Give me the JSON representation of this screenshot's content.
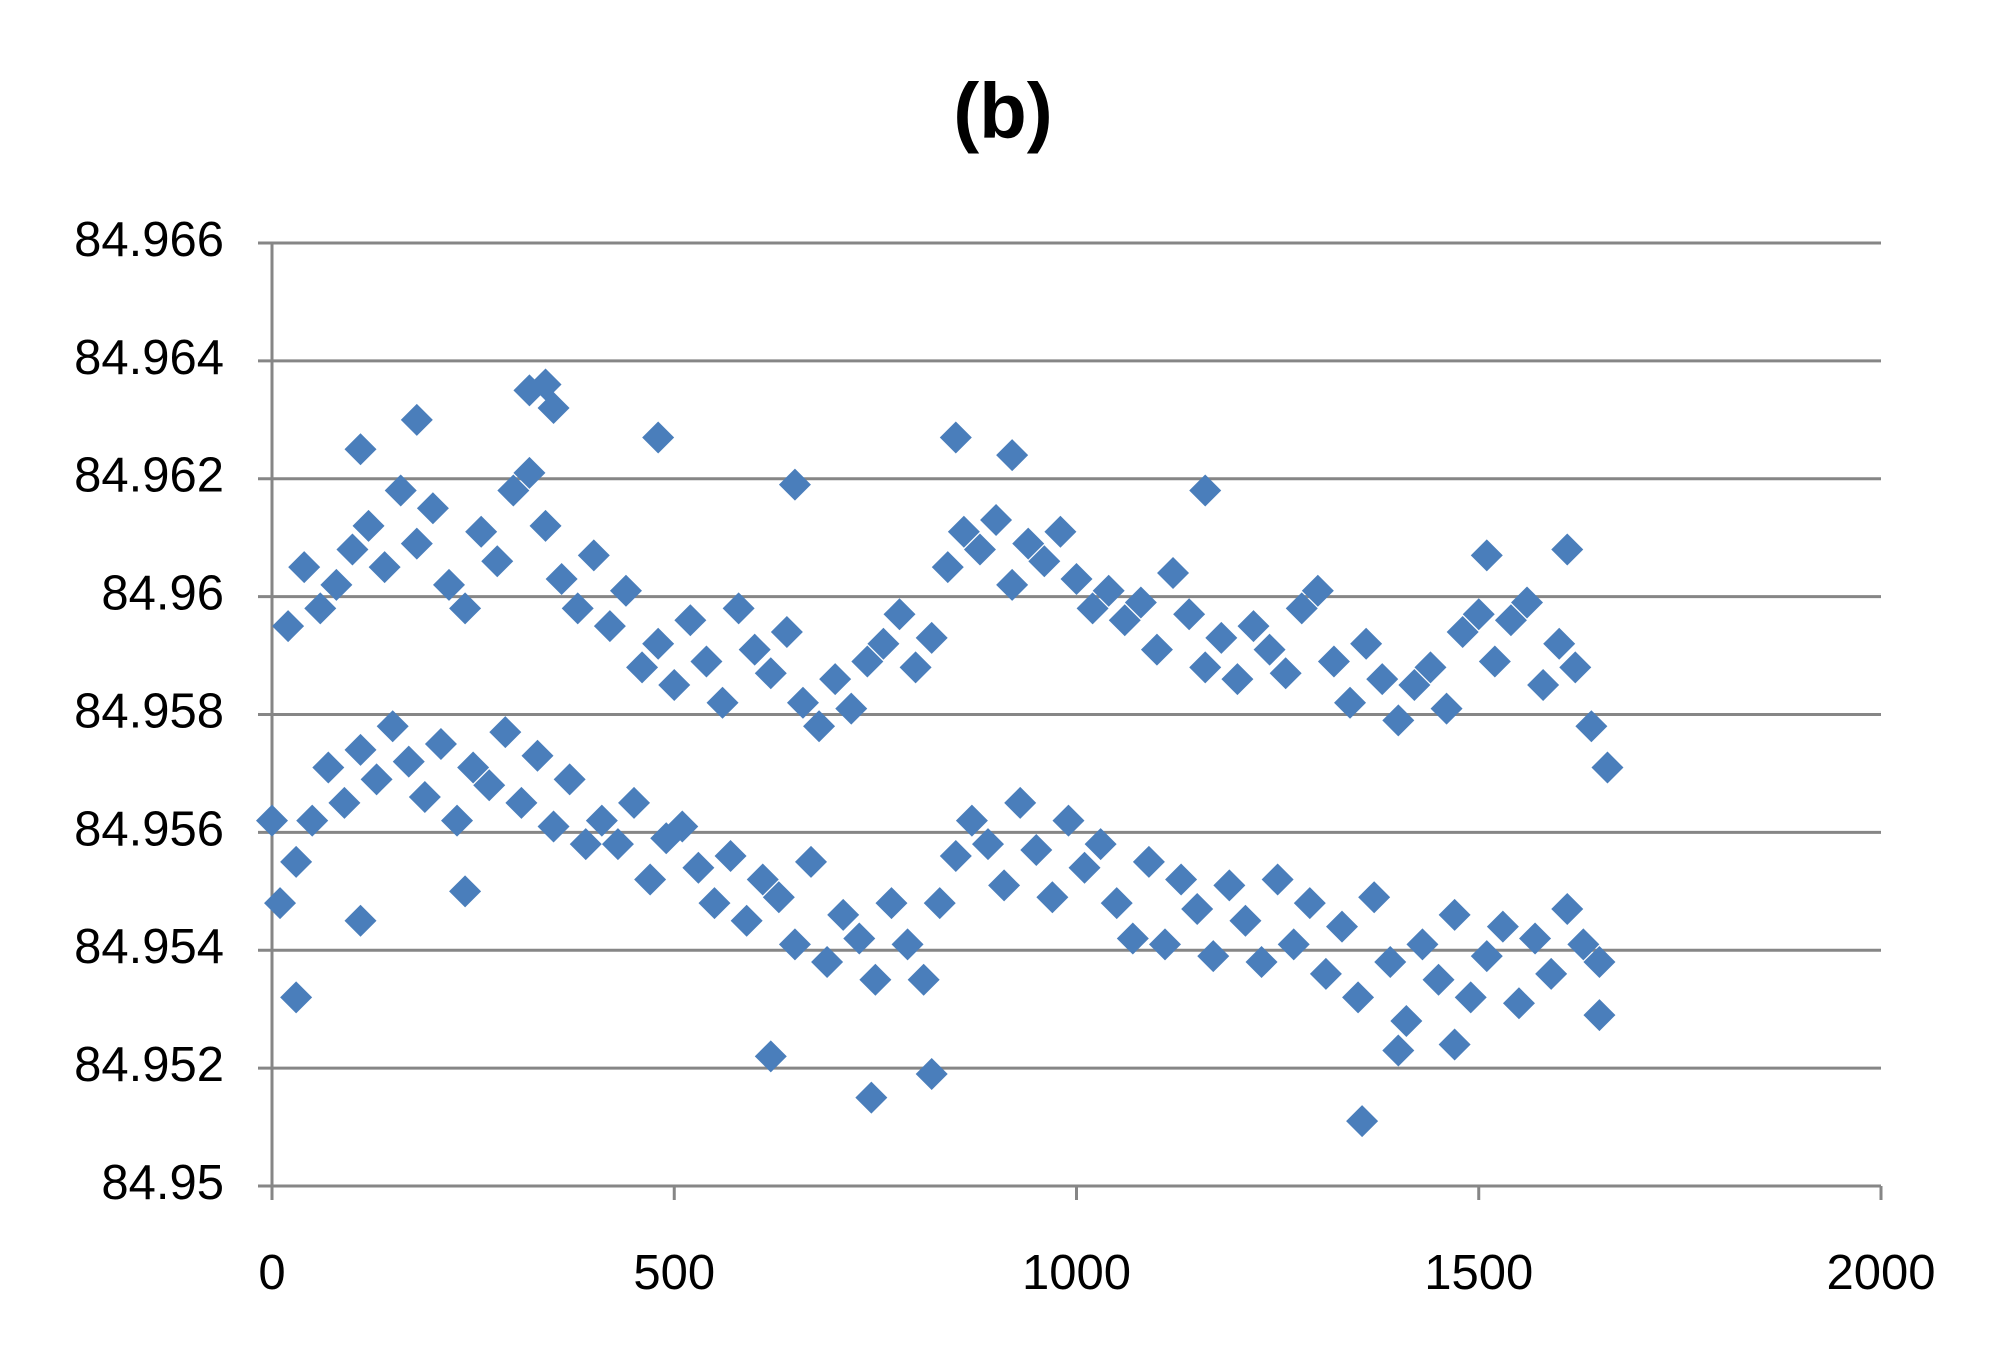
{
  "chart_data": {
    "type": "scatter",
    "title": "(b)",
    "color": "#4a7ebb",
    "marker": "diamond",
    "grid": true,
    "xlim": [
      0,
      2000
    ],
    "xticks": [
      0,
      500,
      1000,
      1500,
      2000
    ],
    "ylim": [
      84.95,
      84.966
    ],
    "yticks": [
      84.95,
      84.952,
      84.954,
      84.956,
      84.958,
      84.96,
      84.962,
      84.964,
      84.966
    ],
    "x": [
      110,
      180,
      320,
      340,
      350,
      480,
      650,
      850,
      920,
      1160,
      1510,
      1610,
      745,
      1355,
      30,
      110,
      240,
      620,
      820,
      1400,
      1470,
      1650,
      0,
      20,
      40,
      60,
      80,
      100,
      120,
      140,
      160,
      180,
      200,
      220,
      240,
      260,
      280,
      300,
      320,
      340,
      360,
      380,
      400,
      420,
      440,
      460,
      480,
      500,
      520,
      540,
      560,
      580,
      600,
      620,
      640,
      660,
      680,
      700,
      720,
      740,
      760,
      780,
      800,
      820,
      840,
      860,
      880,
      900,
      920,
      940,
      960,
      980,
      1000,
      1020,
      1040,
      1060,
      1080,
      1100,
      1120,
      1140,
      1160,
      1180,
      1200,
      1220,
      1240,
      1260,
      1280,
      1300,
      1320,
      1340,
      1360,
      1380,
      1400,
      1420,
      1440,
      1460,
      1480,
      1500,
      1520,
      1540,
      1560,
      1580,
      1600,
      1620,
      1640,
      1660,
      10,
      30,
      50,
      70,
      90,
      110,
      130,
      150,
      170,
      190,
      210,
      230,
      250,
      270,
      290,
      310,
      330,
      350,
      370,
      390,
      410,
      430,
      450,
      470,
      490,
      510,
      530,
      550,
      570,
      590,
      610,
      630,
      650,
      670,
      690,
      710,
      730,
      750,
      770,
      790,
      810,
      830,
      850,
      870,
      890,
      910,
      930,
      950,
      970,
      990,
      1010,
      1030,
      1050,
      1070,
      1090,
      1110,
      1130,
      1150,
      1170,
      1190,
      1210,
      1230,
      1250,
      1270,
      1290,
      1310,
      1330,
      1350,
      1370,
      1390,
      1410,
      1430,
      1450,
      1470,
      1490,
      1510,
      1530,
      1550,
      1570,
      1590,
      1610,
      1630,
      1650
    ],
    "values": [
      84.9625,
      84.963,
      84.9635,
      84.9636,
      84.9632,
      84.9627,
      84.9619,
      84.9627,
      84.9624,
      84.9618,
      84.9607,
      84.9608,
      84.9515,
      84.9511,
      84.9532,
      84.9545,
      84.955,
      84.9522,
      84.9519,
      84.9523,
      84.9524,
      84.9529,
      84.9562,
      84.9595,
      84.9605,
      84.9598,
      84.9602,
      84.9608,
      84.9612,
      84.9605,
      84.9618,
      84.9609,
      84.9615,
      84.9602,
      84.9598,
      84.9611,
      84.9606,
      84.9618,
      84.9621,
      84.9612,
      84.9603,
      84.9598,
      84.9607,
      84.9595,
      84.9601,
      84.9588,
      84.9592,
      84.9585,
      84.9596,
      84.9589,
      84.9582,
      84.9598,
      84.9591,
      84.9587,
      84.9594,
      84.9582,
      84.9578,
      84.9586,
      84.9581,
      84.9589,
      84.9592,
      84.9597,
      84.9588,
      84.9593,
      84.9605,
      84.9611,
      84.9608,
      84.9613,
      84.9602,
      84.9609,
      84.9606,
      84.9611,
      84.9603,
      84.9598,
      84.9601,
      84.9596,
      84.9599,
      84.9591,
      84.9604,
      84.9597,
      84.9588,
      84.9593,
      84.9586,
      84.9595,
      84.9591,
      84.9587,
      84.9598,
      84.9601,
      84.9589,
      84.9582,
      84.9592,
      84.9586,
      84.9579,
      84.9585,
      84.9588,
      84.9581,
      84.9594,
      84.9597,
      84.9589,
      84.9596,
      84.9599,
      84.9585,
      84.9592,
      84.9588,
      84.9578,
      84.9571,
      84.9548,
      84.9555,
      84.9562,
      84.9571,
      84.9565,
      84.9574,
      84.9569,
      84.9578,
      84.9572,
      84.9566,
      84.9575,
      84.9562,
      84.9571,
      84.9568,
      84.9577,
      84.9565,
      84.9573,
      84.9561,
      84.9569,
      84.9558,
      84.9562,
      84.9558,
      84.9565,
      84.9552,
      84.9559,
      84.9561,
      84.9554,
      84.9548,
      84.9556,
      84.9545,
      84.9552,
      84.9549,
      84.9541,
      84.9555,
      84.9538,
      84.9546,
      84.9542,
      84.9535,
      84.9548,
      84.9541,
      84.9535,
      84.9548,
      84.9556,
      84.9562,
      84.9558,
      84.9551,
      84.9565,
      84.9557,
      84.9549,
      84.9562,
      84.9554,
      84.9558,
      84.9548,
      84.9542,
      84.9555,
      84.9541,
      84.9552,
      84.9547,
      84.9539,
      84.9551,
      84.9545,
      84.9538,
      84.9552,
      84.9541,
      84.9548,
      84.9536,
      84.9544,
      84.9532,
      84.9549,
      84.9538,
      84.9528,
      84.9541,
      84.9535,
      84.9546,
      84.9532,
      84.9539,
      84.9544,
      84.9531,
      84.9542,
      84.9536,
      84.9547,
      84.9541,
      84.9538
    ]
  }
}
